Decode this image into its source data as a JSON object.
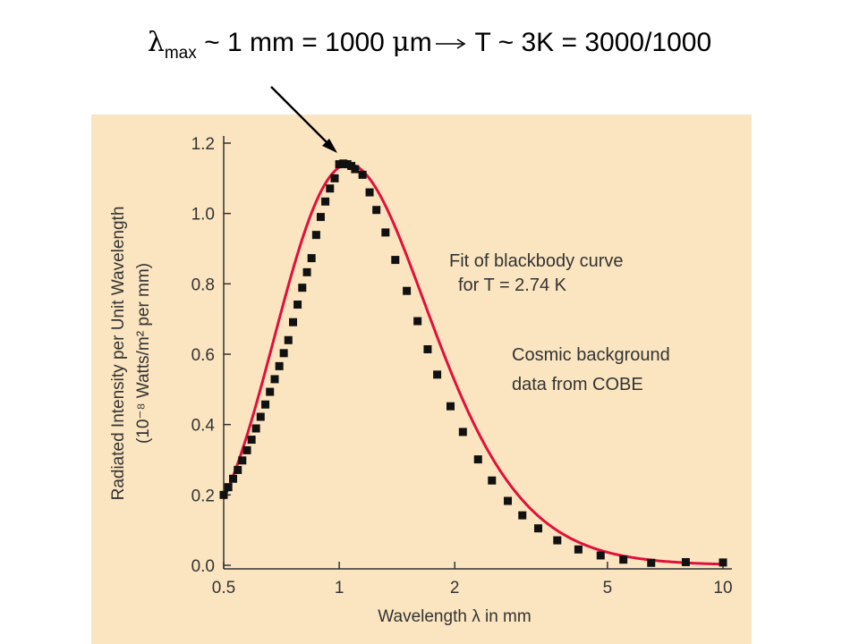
{
  "headline": {
    "lambda_symbol": "λ",
    "subscript": "max",
    "part1": " ~ 1 mm = 1000 ",
    "mu_symbol": "μ",
    "part2": "m",
    "part3": " T ~ 3K = 3000/1000"
  },
  "colors": {
    "panel_background": "#fbe5c0",
    "curve": "#e0103a",
    "marker": "#111111"
  },
  "chart_data": {
    "type": "scatter",
    "xscale": "log",
    "xlim": [
      0.5,
      10
    ],
    "ylim": [
      0.0,
      1.2
    ],
    "xticks": [
      "0.5",
      "1",
      "2",
      "5",
      "10"
    ],
    "yticks": [
      "0.0",
      "0.2",
      "0.4",
      "0.6",
      "0.8",
      "1.0",
      "1.2"
    ],
    "xlabel": "Wavelength λ in mm",
    "ylabel_line1": "Radiated Intensity per Unit Wavelength",
    "ylabel_line2": "(10⁻⁸ Watts/m² per mm)",
    "annotations": [
      "Fit of blackbody curve",
      "for T = 2.74 K",
      "Cosmic background",
      "data from COBE"
    ],
    "grid": false,
    "series": [
      {
        "kind": "fit-curve",
        "temperature_K": 2.74,
        "peak_value": 1.14
      },
      {
        "kind": "data-points",
        "x": [
          0.5,
          0.514,
          0.529,
          0.544,
          0.559,
          0.575,
          0.591,
          0.607,
          0.624,
          0.642,
          0.66,
          0.679,
          0.698,
          0.717,
          0.737,
          0.758,
          0.779,
          0.801,
          0.824,
          0.847,
          0.871,
          0.895,
          0.92,
          0.946,
          0.973,
          1.0,
          1.025,
          1.05,
          1.075,
          1.1,
          1.15,
          1.2,
          1.25,
          1.32,
          1.4,
          1.5,
          1.6,
          1.7,
          1.8,
          1.95,
          2.1,
          2.3,
          2.5,
          2.75,
          3.0,
          3.3,
          3.7,
          4.2,
          4.8,
          5.5,
          6.5,
          8.0,
          10.0
        ],
        "y": [
          0.2,
          0.222,
          0.246,
          0.271,
          0.298,
          0.327,
          0.357,
          0.389,
          0.422,
          0.457,
          0.493,
          0.529,
          0.566,
          0.603,
          0.64,
          0.691,
          0.741,
          0.789,
          0.833,
          0.873,
          0.939,
          0.99,
          1.034,
          1.071,
          1.1,
          1.14,
          1.142,
          1.14,
          1.135,
          1.126,
          1.11,
          1.06,
          1.01,
          0.946,
          0.868,
          0.78,
          0.694,
          0.614,
          0.542,
          0.452,
          0.379,
          0.301,
          0.241,
          0.183,
          0.142,
          0.105,
          0.071,
          0.045,
          0.028,
          0.016,
          0.007,
          0.009,
          0.008
        ]
      }
    ]
  }
}
